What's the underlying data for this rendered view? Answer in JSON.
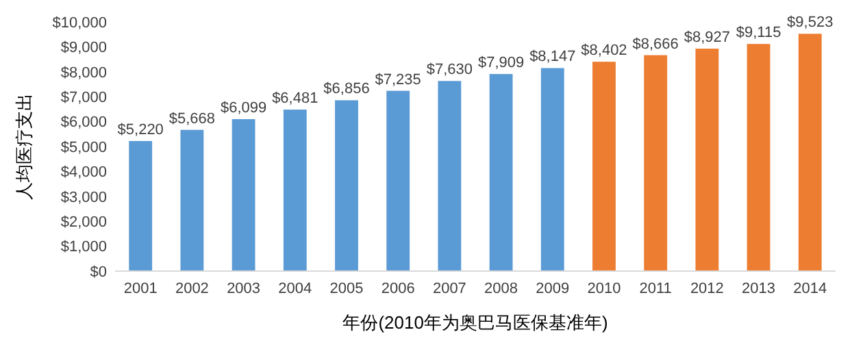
{
  "chart_data": {
    "type": "bar",
    "xlabel": "年份(2010年为奥巴马医保基准年)",
    "ylabel": "人均医疗支出",
    "categories": [
      "2001",
      "2002",
      "2003",
      "2004",
      "2005",
      "2006",
      "2007",
      "2008",
      "2009",
      "2010",
      "2011",
      "2012",
      "2013",
      "2014"
    ],
    "values": [
      5220,
      5668,
      6099,
      6481,
      6856,
      7235,
      7630,
      7909,
      8147,
      8402,
      8666,
      8927,
      9115,
      9523
    ],
    "colors": [
      "#5b9bd5",
      "#5b9bd5",
      "#5b9bd5",
      "#5b9bd5",
      "#5b9bd5",
      "#5b9bd5",
      "#5b9bd5",
      "#5b9bd5",
      "#5b9bd5",
      "#ed7d31",
      "#ed7d31",
      "#ed7d31",
      "#ed7d31",
      "#ed7d31"
    ],
    "value_labels": [
      "$5,220",
      "$5,668",
      "$6,099",
      "$6,481",
      "$6,856",
      "$7,235",
      "$7,630",
      "$7,909",
      "$8,147",
      "$8,402",
      "$8,666",
      "$8,927",
      "$9,115",
      "$9,523"
    ],
    "ylim": [
      0,
      10000
    ],
    "yticks": [
      {
        "value": 0,
        "label": "$0"
      },
      {
        "value": 1000,
        "label": "$1,000"
      },
      {
        "value": 2000,
        "label": "$2,000"
      },
      {
        "value": 3000,
        "label": "$3,000"
      },
      {
        "value": 4000,
        "label": "$4,000"
      },
      {
        "value": 5000,
        "label": "$5,000"
      },
      {
        "value": 6000,
        "label": "$6,000"
      },
      {
        "value": 7000,
        "label": "$7,000"
      },
      {
        "value": 8000,
        "label": "$8,000"
      },
      {
        "value": 9000,
        "label": "$9,000"
      },
      {
        "value": 10000,
        "label": "$10,000"
      }
    ]
  }
}
